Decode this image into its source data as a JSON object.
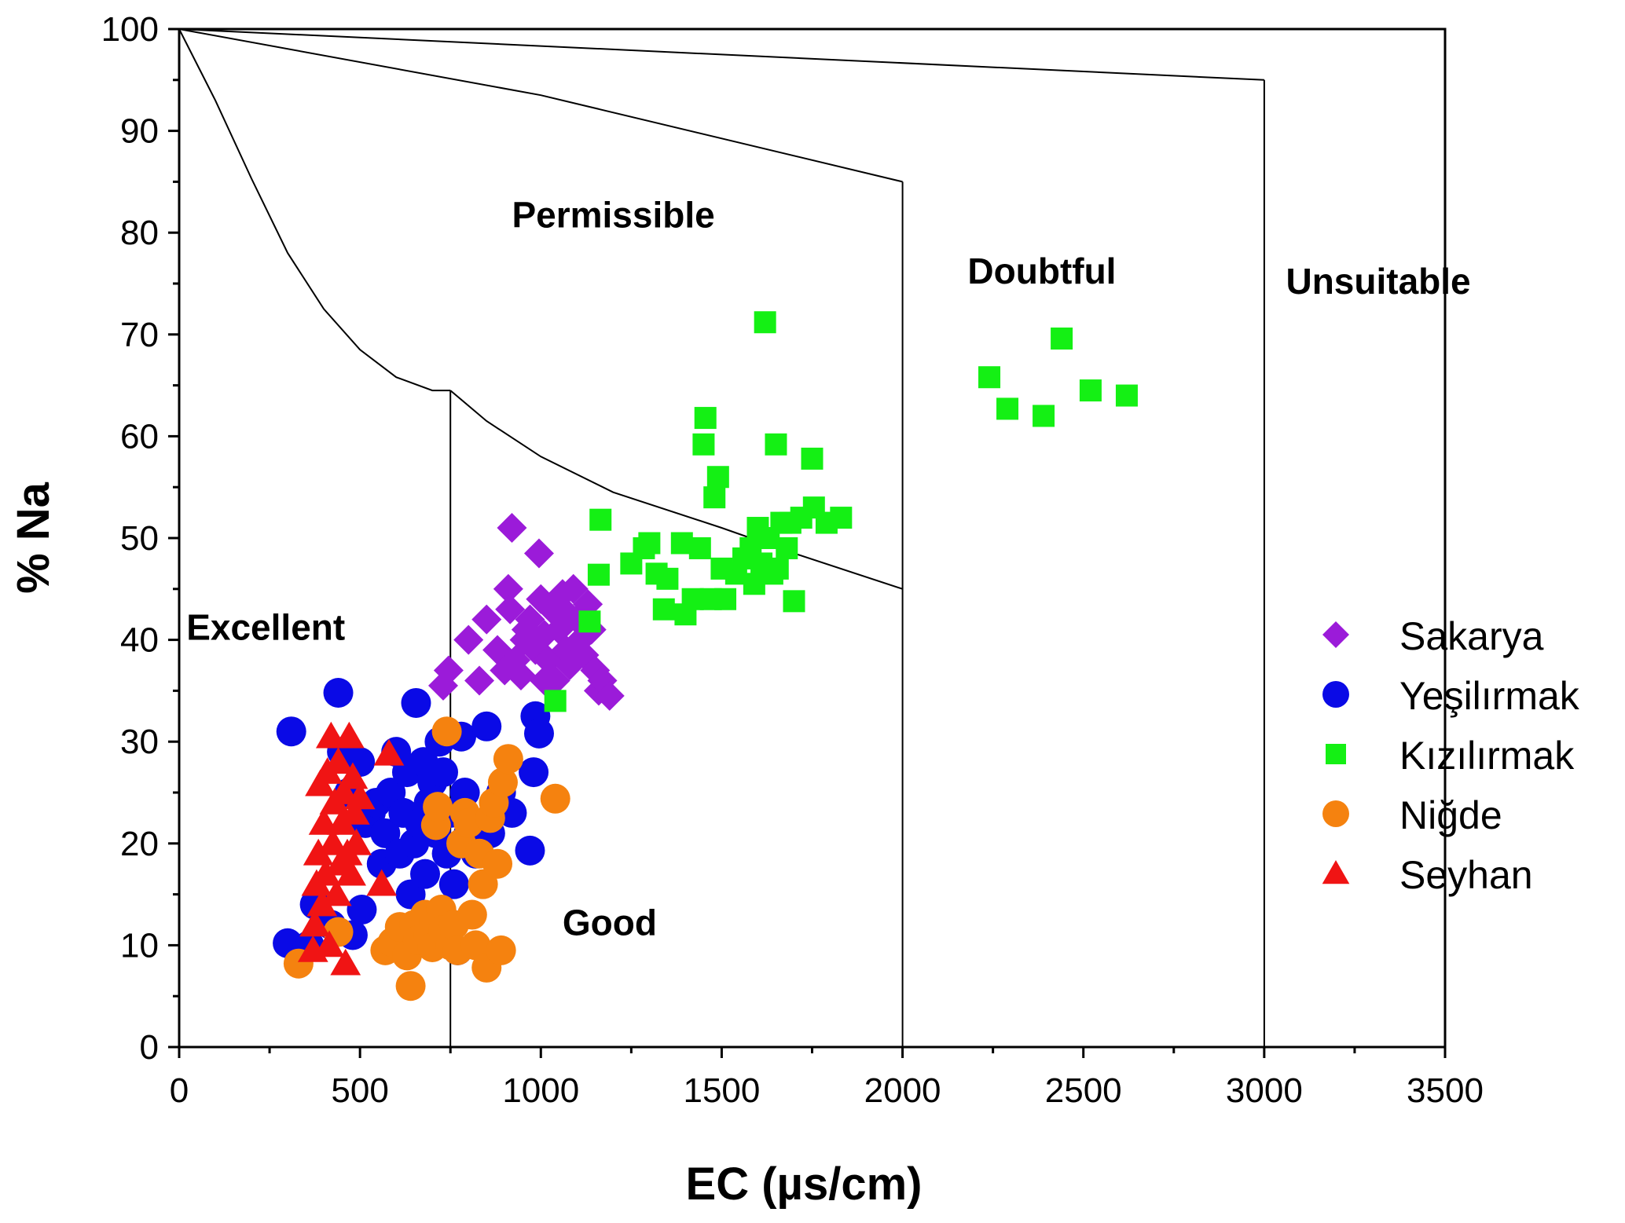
{
  "chart_data": {
    "type": "scatter",
    "title": "",
    "xlabel": "EC (µs/cm)",
    "ylabel": "% Na",
    "xlim": [
      0,
      3500
    ],
    "ylim": [
      0,
      100
    ],
    "x_ticks": [
      0,
      500,
      1000,
      1500,
      2000,
      2500,
      3000,
      3500
    ],
    "y_ticks": [
      0,
      10,
      20,
      30,
      40,
      50,
      60,
      70,
      80,
      90,
      100
    ],
    "grid": false,
    "legend_position": "right",
    "zone_labels": [
      {
        "text": "Excellent",
        "x": 20,
        "y": 40
      },
      {
        "text": "Good",
        "x": 1060,
        "y": 11
      },
      {
        "text": "Permissible",
        "x": 920,
        "y": 80.5
      },
      {
        "text": "Doubtful",
        "x": 2180,
        "y": 75
      },
      {
        "text": "Unsuitable",
        "x": 3060,
        "y": 74
      }
    ],
    "boundaries": [
      {
        "name": "excellent-good-curve",
        "points": [
          [
            0,
            100
          ],
          [
            100,
            93
          ],
          [
            200,
            85.3
          ],
          [
            300,
            78
          ],
          [
            400,
            72.5
          ],
          [
            500,
            68.5
          ],
          [
            600,
            65.8
          ],
          [
            700,
            64.5
          ],
          [
            750,
            64.5
          ]
        ]
      },
      {
        "name": "good-permissible-curve",
        "points": [
          [
            750,
            64.5
          ],
          [
            850,
            61.5
          ],
          [
            1000,
            58
          ],
          [
            1200,
            54.5
          ],
          [
            1500,
            51
          ],
          [
            1700,
            48.5
          ],
          [
            2000,
            45
          ]
        ]
      },
      {
        "name": "permissible-doubtful-line",
        "points": [
          [
            0,
            100
          ],
          [
            1000,
            93.5
          ],
          [
            2000,
            85
          ]
        ]
      },
      {
        "name": "doubtful-unsuitable-line",
        "points": [
          [
            0,
            100
          ],
          [
            3000,
            95
          ]
        ]
      },
      {
        "name": "vertical-750",
        "points": [
          [
            750,
            0
          ],
          [
            750,
            64.5
          ]
        ]
      },
      {
        "name": "vertical-2000",
        "points": [
          [
            2000,
            0
          ],
          [
            2000,
            85
          ]
        ]
      },
      {
        "name": "vertical-3000",
        "points": [
          [
            3000,
            0
          ],
          [
            3000,
            95
          ]
        ]
      }
    ],
    "series": [
      {
        "name": "Sakarya",
        "marker": "diamond",
        "color": "#9b1bd9",
        "points": [
          [
            745,
            37
          ],
          [
            730,
            35.5
          ],
          [
            830,
            36
          ],
          [
            800,
            40
          ],
          [
            850,
            42
          ],
          [
            880,
            39
          ],
          [
            900,
            37
          ],
          [
            910,
            45
          ],
          [
            915,
            43
          ],
          [
            920,
            51
          ],
          [
            930,
            38
          ],
          [
            945,
            36.5
          ],
          [
            955,
            40
          ],
          [
            970,
            42
          ],
          [
            985,
            39
          ],
          [
            995,
            48.5
          ],
          [
            1000,
            44
          ],
          [
            1010,
            40.5
          ],
          [
            1020,
            38
          ],
          [
            1030,
            43
          ],
          [
            1040,
            36
          ],
          [
            1050,
            41
          ],
          [
            1060,
            44.5
          ],
          [
            1070,
            39
          ],
          [
            1080,
            37.5
          ],
          [
            1090,
            45
          ],
          [
            1100,
            42
          ],
          [
            1110,
            40
          ],
          [
            1120,
            38.5
          ],
          [
            1130,
            43.5
          ],
          [
            1140,
            41
          ],
          [
            1150,
            37
          ],
          [
            1160,
            35
          ],
          [
            1170,
            36
          ],
          [
            1190,
            34.5
          ],
          [
            960,
            41
          ],
          [
            1010,
            36
          ],
          [
            1075,
            42.5
          ]
        ]
      },
      {
        "name": "Yeşilırmak",
        "marker": "circle",
        "color": "#0a0ae6",
        "points": [
          [
            300,
            10.2
          ],
          [
            310,
            31
          ],
          [
            360,
            10
          ],
          [
            375,
            14
          ],
          [
            420,
            12
          ],
          [
            440,
            34.8
          ],
          [
            450,
            29
          ],
          [
            470,
            25
          ],
          [
            480,
            11
          ],
          [
            500,
            28
          ],
          [
            505,
            13.5
          ],
          [
            515,
            22
          ],
          [
            530,
            23
          ],
          [
            545,
            24
          ],
          [
            560,
            18
          ],
          [
            570,
            21
          ],
          [
            585,
            25
          ],
          [
            600,
            29
          ],
          [
            610,
            19
          ],
          [
            620,
            23
          ],
          [
            630,
            27
          ],
          [
            640,
            15
          ],
          [
            650,
            20
          ],
          [
            655,
            33.8
          ],
          [
            665,
            22
          ],
          [
            675,
            28
          ],
          [
            680,
            17
          ],
          [
            690,
            24
          ],
          [
            700,
            26
          ],
          [
            710,
            21
          ],
          [
            720,
            30
          ],
          [
            730,
            27
          ],
          [
            740,
            19
          ],
          [
            750,
            23
          ],
          [
            760,
            16
          ],
          [
            770,
            9.5
          ],
          [
            780,
            30.5
          ],
          [
            790,
            25
          ],
          [
            800,
            21
          ],
          [
            820,
            19
          ],
          [
            850,
            31.5
          ],
          [
            860,
            21
          ],
          [
            890,
            25
          ],
          [
            920,
            23
          ],
          [
            970,
            19.3
          ],
          [
            980,
            27
          ],
          [
            985,
            32.5
          ],
          [
            995,
            30.8
          ]
        ]
      },
      {
        "name": "Kızılırmak",
        "marker": "square",
        "color": "#14f014",
        "points": [
          [
            1040,
            34
          ],
          [
            1135,
            41.8
          ],
          [
            1160,
            46.4
          ],
          [
            1165,
            51.8
          ],
          [
            1250,
            47.5
          ],
          [
            1285,
            49
          ],
          [
            1300,
            49.5
          ],
          [
            1320,
            46.5
          ],
          [
            1340,
            43
          ],
          [
            1350,
            46
          ],
          [
            1390,
            49.5
          ],
          [
            1400,
            42.5
          ],
          [
            1420,
            44
          ],
          [
            1440,
            49
          ],
          [
            1450,
            59.2
          ],
          [
            1455,
            61.8
          ],
          [
            1470,
            44
          ],
          [
            1480,
            54
          ],
          [
            1490,
            56
          ],
          [
            1500,
            47
          ],
          [
            1510,
            44
          ],
          [
            1540,
            46.5
          ],
          [
            1560,
            48
          ],
          [
            1580,
            49
          ],
          [
            1590,
            45.5
          ],
          [
            1600,
            51
          ],
          [
            1610,
            47.5
          ],
          [
            1620,
            71.2
          ],
          [
            1630,
            50
          ],
          [
            1640,
            46.5
          ],
          [
            1650,
            59.2
          ],
          [
            1655,
            47
          ],
          [
            1665,
            51.5
          ],
          [
            1680,
            49
          ],
          [
            1690,
            51.5
          ],
          [
            1700,
            43.8
          ],
          [
            1720,
            52
          ],
          [
            1750,
            57.8
          ],
          [
            1755,
            53
          ],
          [
            1790,
            51.5
          ],
          [
            1830,
            52
          ],
          [
            2240,
            65.8
          ],
          [
            2290,
            62.7
          ],
          [
            2390,
            62
          ],
          [
            2440,
            69.6
          ],
          [
            2520,
            64.5
          ],
          [
            2620,
            64
          ]
        ]
      },
      {
        "name": "Niğde",
        "marker": "circle",
        "color": "#f5820f",
        "points": [
          [
            330,
            8.2
          ],
          [
            440,
            11.3
          ],
          [
            570,
            9.5
          ],
          [
            590,
            10.3
          ],
          [
            610,
            11.8
          ],
          [
            630,
            9
          ],
          [
            640,
            6
          ],
          [
            650,
            12
          ],
          [
            660,
            10.5
          ],
          [
            680,
            13
          ],
          [
            690,
            11
          ],
          [
            700,
            9.8
          ],
          [
            705,
            12.5
          ],
          [
            710,
            21.8
          ],
          [
            715,
            23.6
          ],
          [
            725,
            13.5
          ],
          [
            730,
            11.5
          ],
          [
            740,
            31
          ],
          [
            750,
            10
          ],
          [
            760,
            12
          ],
          [
            770,
            9.5
          ],
          [
            780,
            20
          ],
          [
            790,
            23
          ],
          [
            800,
            22
          ],
          [
            810,
            13
          ],
          [
            820,
            10
          ],
          [
            830,
            19
          ],
          [
            840,
            16
          ],
          [
            850,
            7.8
          ],
          [
            860,
            22.5
          ],
          [
            870,
            24
          ],
          [
            880,
            18
          ],
          [
            890,
            9.5
          ],
          [
            895,
            26
          ],
          [
            910,
            28.3
          ],
          [
            1040,
            24.4
          ]
        ]
      },
      {
        "name": "Seyhan",
        "marker": "triangle",
        "color": "#f01414",
        "points": [
          [
            370,
            9.5
          ],
          [
            375,
            12
          ],
          [
            380,
            16
          ],
          [
            385,
            19
          ],
          [
            390,
            25.8
          ],
          [
            395,
            14
          ],
          [
            400,
            22
          ],
          [
            405,
            17
          ],
          [
            410,
            27
          ],
          [
            415,
            10
          ],
          [
            420,
            30.5
          ],
          [
            425,
            20
          ],
          [
            430,
            24
          ],
          [
            435,
            15
          ],
          [
            440,
            28
          ],
          [
            445,
            18
          ],
          [
            450,
            22
          ],
          [
            455,
            25
          ],
          [
            460,
            8.2
          ],
          [
            465,
            19
          ],
          [
            470,
            30.5
          ],
          [
            475,
            17
          ],
          [
            480,
            26.5
          ],
          [
            485,
            23
          ],
          [
            490,
            20
          ],
          [
            500,
            24.5
          ],
          [
            560,
            16
          ],
          [
            580,
            28.8
          ]
        ]
      }
    ]
  }
}
